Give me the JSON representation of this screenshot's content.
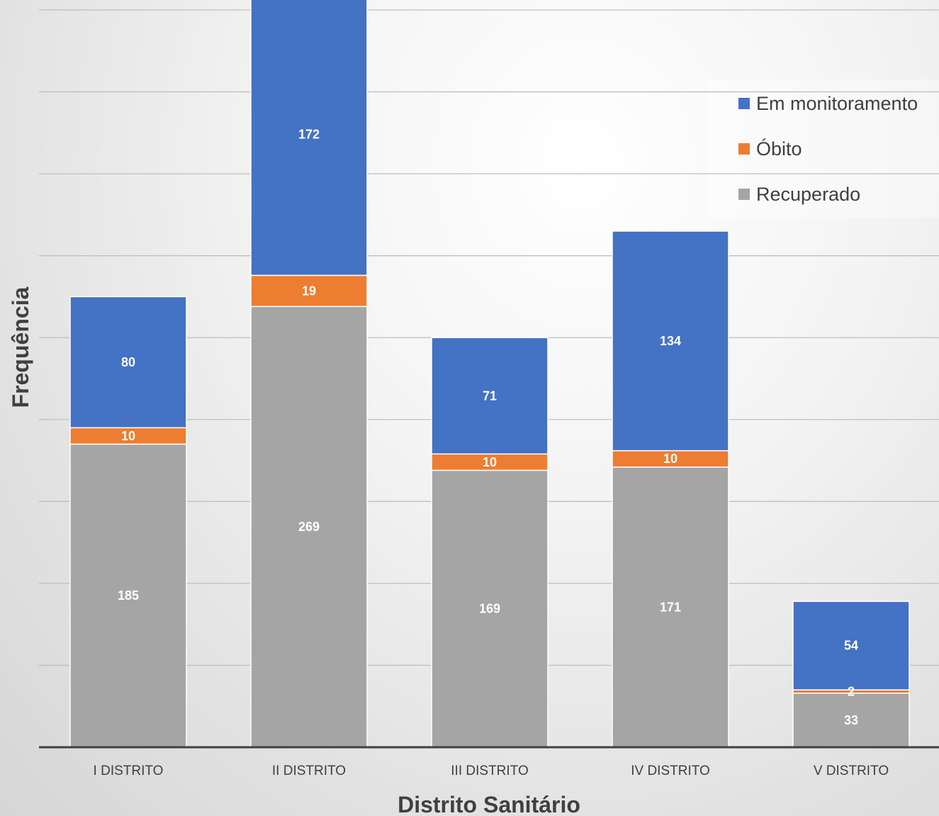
{
  "chart_data": {
    "type": "bar",
    "stacked": true,
    "categories": [
      "I DISTRITO",
      "II DISTRITO",
      "III DISTRITO",
      "IV DISTRITO",
      "V DISTRITO"
    ],
    "series": [
      {
        "name": "Recuperado",
        "values": [
          185,
          269,
          169,
          171,
          33
        ],
        "color": "#a5a5a5"
      },
      {
        "name": "Óbito",
        "values": [
          10,
          19,
          10,
          10,
          2
        ],
        "color": "#ed7d31"
      },
      {
        "name": "Em monitoramento",
        "values": [
          80,
          172,
          71,
          134,
          54
        ],
        "color": "#4472c4"
      }
    ],
    "xlabel": "Distrito Sanitário",
    "ylabel": "Frequência",
    "ylim": [
      0,
      450
    ],
    "grid": true,
    "legend_position": "top-right",
    "legend_order": [
      "Em monitoramento",
      "Óbito",
      "Recuperado"
    ]
  }
}
